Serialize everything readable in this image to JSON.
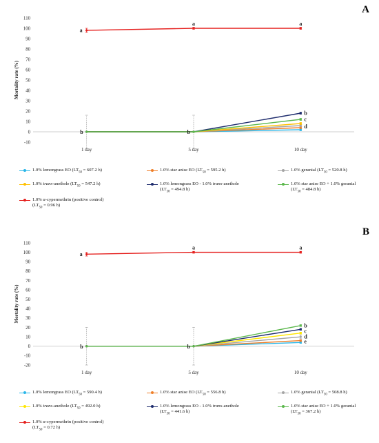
{
  "chart_data": [
    {
      "panel": "A",
      "type": "line",
      "ylabel": "Mortality rate (%)",
      "categories": [
        "1 day",
        "5 day",
        "10 day"
      ],
      "ylim": [
        -10,
        110
      ],
      "yticks": [
        "-10",
        "0",
        "10",
        "20",
        "30",
        "40",
        "50",
        "60",
        "70",
        "80",
        "90",
        "100",
        "110"
      ],
      "series": [
        {
          "name": "1.0% lemongrass EO (LT50 = 607.2 h)",
          "color": "#29b6e8",
          "values": [
            0,
            0,
            2
          ],
          "err": [
            0,
            0,
            1
          ]
        },
        {
          "name": "1.0% star anise EO (LT50 = 595.2 h)",
          "color": "#ef7f29",
          "values": [
            0,
            0,
            4
          ],
          "err": [
            0,
            0,
            1
          ]
        },
        {
          "name": "1.0% geranial (LT50 = 520.8 h)",
          "color": "#a5a5a5",
          "values": [
            0,
            0,
            6
          ],
          "err": [
            16,
            16,
            1
          ]
        },
        {
          "name": "1.0% trans-anethole (LT50 = 547.2 h)",
          "color": "#ffc000",
          "values": [
            0,
            0,
            8
          ],
          "err": [
            0,
            0,
            1
          ]
        },
        {
          "name": "1.0% lemongrass EO - 1.0% trans-anethole (LT50 = 494.8 h)",
          "color": "#1f2d6e",
          "values": [
            0,
            0,
            18
          ],
          "err": [
            0,
            0,
            1
          ]
        },
        {
          "name": "1.0% star anise EO + 1.0% geranial (LT50 = 484.8 h)",
          "color": "#5cb84d",
          "values": [
            0,
            0,
            12
          ],
          "err": [
            0,
            0,
            1
          ]
        },
        {
          "name": "1.0% α-cypermethrin (positive control) (LT50 = 0.96 h)",
          "color": "#e5201e",
          "values": [
            98,
            100,
            100
          ],
          "err": [
            2,
            1,
            1
          ]
        }
      ],
      "annotations": [
        {
          "text": "a",
          "x": "1 day",
          "y": 98
        },
        {
          "text": "a",
          "x": "5 day",
          "y": 100
        },
        {
          "text": "a",
          "x": "10 day",
          "y": 100
        },
        {
          "text": "b",
          "x": "1 day",
          "y": 0
        },
        {
          "text": "b",
          "x": "5 day",
          "y": 0
        },
        {
          "text": "b",
          "x": "10 day",
          "y": 18
        },
        {
          "text": "c",
          "x": "10 day",
          "y": 12
        },
        {
          "text": "d",
          "x": "10 day",
          "y": 5
        }
      ],
      "legend": [
        {
          "pre": "1.0% lemongrass EO (LT",
          "sub": "50",
          "post": " = 607.2 h)"
        },
        {
          "pre": "1.0% star anise EO (LT",
          "sub": "50",
          "post": " = 595.2 h)"
        },
        {
          "pre": "1.0% geranial (LT",
          "sub": "50",
          "post": " = 520.8 h)"
        },
        {
          "pre": "1.0% ",
          "it": "trans",
          "mid": "-anethole (LT",
          "sub": "50",
          "post": " = 547.2 h)"
        },
        {
          "pre": "1.0% lemongrass EO - 1.0% ",
          "it": "trans",
          "mid": "-anethole",
          "line2pre": "(LT",
          "sub": "50",
          "post": " = 494.8 h)"
        },
        {
          "pre": "1.0% star anise EO + 1.0% geranial",
          "line2pre": "(LT",
          "sub": "50",
          "post": " = 484.8 h)"
        },
        {
          "pre": "1.0% ",
          "it": "α",
          "mid": "-cypermethrin (positive control)",
          "line2pre": "(LT",
          "sub": "50",
          "post": " = 0.96 h)"
        }
      ]
    },
    {
      "panel": "B",
      "type": "line",
      "ylabel": "Mortality rate (%)",
      "categories": [
        "1 day",
        "5 day",
        "10 day"
      ],
      "ylim": [
        -20,
        110
      ],
      "yticks": [
        "-20",
        "-10",
        "0",
        "10",
        "20",
        "30",
        "40",
        "50",
        "60",
        "70",
        "80",
        "90",
        "100",
        "110"
      ],
      "series": [
        {
          "name": "1.0% lemongrass EO (LT50 = 590.4 h)",
          "color": "#29b6e8",
          "values": [
            0,
            0,
            4
          ],
          "err": [
            0,
            0,
            1
          ]
        },
        {
          "name": "1.0% star anise EO (LT50 = 556.8 h)",
          "color": "#ef7f29",
          "values": [
            0,
            0,
            6
          ],
          "err": [
            0,
            0,
            1
          ]
        },
        {
          "name": "1.0% geranial (LT50 = 508.8 h)",
          "color": "#a5a5a5",
          "values": [
            0,
            0,
            10
          ],
          "err": [
            20,
            20,
            2
          ]
        },
        {
          "name": "1.0% trans-anethole (LT50 = 492.0 h)",
          "color": "#ffe600",
          "values": [
            0,
            0,
            14
          ],
          "err": [
            0,
            0,
            1
          ]
        },
        {
          "name": "1.0% lemongrass EO - 1.0% trans-anethole (LT50 = 441.6 h)",
          "color": "#1f2d6e",
          "values": [
            0,
            0,
            18
          ],
          "err": [
            0,
            0,
            1
          ]
        },
        {
          "name": "1.0% star anise EO + 1.0% geranial (LT50 = 367.2 h)",
          "color": "#5cb84d",
          "values": [
            0,
            0,
            22
          ],
          "err": [
            0,
            0,
            1
          ]
        },
        {
          "name": "1.0% α-cypermethrin (positive control) (LT50 = 0.72 h)",
          "color": "#e5201e",
          "values": [
            98,
            100,
            100
          ],
          "err": [
            2,
            1,
            1
          ]
        }
      ],
      "annotations": [
        {
          "text": "a",
          "x": "1 day",
          "y": 98
        },
        {
          "text": "a",
          "x": "5 day",
          "y": 100
        },
        {
          "text": "a",
          "x": "10 day",
          "y": 100
        },
        {
          "text": "b",
          "x": "1 day",
          "y": 0
        },
        {
          "text": "b",
          "x": "5 day",
          "y": 0
        },
        {
          "text": "b",
          "x": "10 day",
          "y": 22
        },
        {
          "text": "c",
          "x": "10 day",
          "y": 16
        },
        {
          "text": "d",
          "x": "10 day",
          "y": 10
        },
        {
          "text": "e",
          "x": "10 day",
          "y": 5
        }
      ],
      "legend": [
        {
          "pre": "1.0% lemongrass EO (LT",
          "sub": "50",
          "post": " = 590.4 h)"
        },
        {
          "pre": "1.0% star anise EO (LT",
          "sub": "50",
          "post": " = 556.8 h)"
        },
        {
          "pre": "1.0% geranial (LT",
          "sub": "50",
          "post": " = 508.8 h)"
        },
        {
          "pre": "1.0% ",
          "it": "trans",
          "mid": "-anethole (LT",
          "sub": "50",
          "post": " = 492.0 h)"
        },
        {
          "pre": "1.0% lemongrass EO - 1.0% ",
          "it": "trans",
          "mid": "-anethole",
          "line2pre": "(LT",
          "sub": "50",
          "post": " = 441.6 h)"
        },
        {
          "pre": "1.0% star anise EO + 1.0% geranial",
          "line2pre": "(LT",
          "sub": "50",
          "post": " = 367.2 h)"
        },
        {
          "pre": "1.0% ",
          "it": "α",
          "mid": "-cypermethrin (positive control)",
          "line2pre": "(LT",
          "sub": "50",
          "post": " = 0.72 h)"
        }
      ]
    }
  ],
  "panel_letters": [
    "A",
    "B"
  ]
}
